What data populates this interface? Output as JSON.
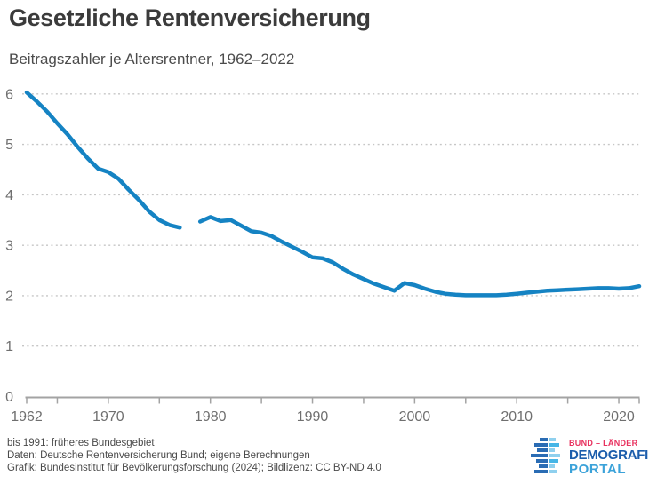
{
  "header": {
    "title": "Gesetzliche Rentenversicherung",
    "subtitle": "Beitragszahler je Altersrentner, 1962–2022"
  },
  "footer": {
    "lines": [
      "bis 1991: früheres Bundesgebiet",
      "Daten: Deutsche Rentenversicherung Bund; eigene Berechnungen",
      "Grafik: Bundesinstitut für Bevölkerungsforschung (2024); Bildlizenz: CC BY-ND 4.0"
    ]
  },
  "logo": {
    "line1": "BUND – LÄNDER",
    "line2": "DEMOGRAFIE",
    "line3": "PORTAL",
    "colors": {
      "red": "#e8325f",
      "dark_blue": "#1c5dab",
      "light_blue": "#3ba2d9",
      "icon_dark": "#2a6cb4",
      "icon_light": "#8fd0ee",
      "icon_cyan": "#45b5e6"
    }
  },
  "chart_data": {
    "type": "line",
    "title": "Gesetzliche Rentenversicherung",
    "subtitle": "Beitragszahler je Altersrentner, 1962–2022",
    "xlabel": "",
    "ylabel": "",
    "xlim": [
      1962,
      2022
    ],
    "ylim": [
      0,
      6
    ],
    "y_ticks": [
      0,
      1,
      2,
      3,
      4,
      5,
      6
    ],
    "x_labeled_ticks": [
      1962,
      1970,
      1980,
      1990,
      2000,
      2010,
      2020
    ],
    "x_minor_ticks": [
      1962,
      1965,
      1970,
      1975,
      1980,
      1985,
      1990,
      1995,
      2000,
      2005,
      2010,
      2015,
      2020,
      2022
    ],
    "grid": "horizontal dotted gridlines at integer values",
    "legend": "none",
    "line_color": "#1583c3",
    "axis_color": "#a3a3a3",
    "grid_color": "#c6c6c6",
    "tick_label_color": "#6f6f6f",
    "gap_note_visual": "line interrupted between 1977 and 1979",
    "series": [
      {
        "name": "1962–1977",
        "x": [
          1962,
          1963,
          1964,
          1965,
          1966,
          1967,
          1968,
          1969,
          1970,
          1971,
          1972,
          1973,
          1974,
          1975,
          1976,
          1977
        ],
        "y": [
          6.03,
          5.85,
          5.65,
          5.42,
          5.2,
          4.95,
          4.72,
          4.52,
          4.45,
          4.32,
          4.1,
          3.9,
          3.67,
          3.5,
          3.4,
          3.35
        ]
      },
      {
        "name": "1979–2022",
        "x": [
          1979,
          1980,
          1981,
          1982,
          1983,
          1984,
          1985,
          1986,
          1987,
          1988,
          1989,
          1990,
          1991,
          1992,
          1993,
          1994,
          1995,
          1996,
          1997,
          1998,
          1999,
          2000,
          2001,
          2002,
          2003,
          2004,
          2005,
          2006,
          2007,
          2008,
          2009,
          2010,
          2011,
          2012,
          2013,
          2014,
          2015,
          2016,
          2017,
          2018,
          2019,
          2020,
          2021,
          2022
        ],
        "y": [
          3.47,
          3.56,
          3.48,
          3.5,
          3.39,
          3.28,
          3.25,
          3.18,
          3.07,
          2.97,
          2.87,
          2.76,
          2.74,
          2.66,
          2.53,
          2.42,
          2.33,
          2.24,
          2.17,
          2.1,
          2.25,
          2.21,
          2.14,
          2.08,
          2.04,
          2.02,
          2.01,
          2.01,
          2.01,
          2.01,
          2.02,
          2.04,
          2.06,
          2.08,
          2.1,
          2.11,
          2.12,
          2.13,
          2.14,
          2.15,
          2.15,
          2.14,
          2.15,
          2.19
        ]
      }
    ]
  }
}
